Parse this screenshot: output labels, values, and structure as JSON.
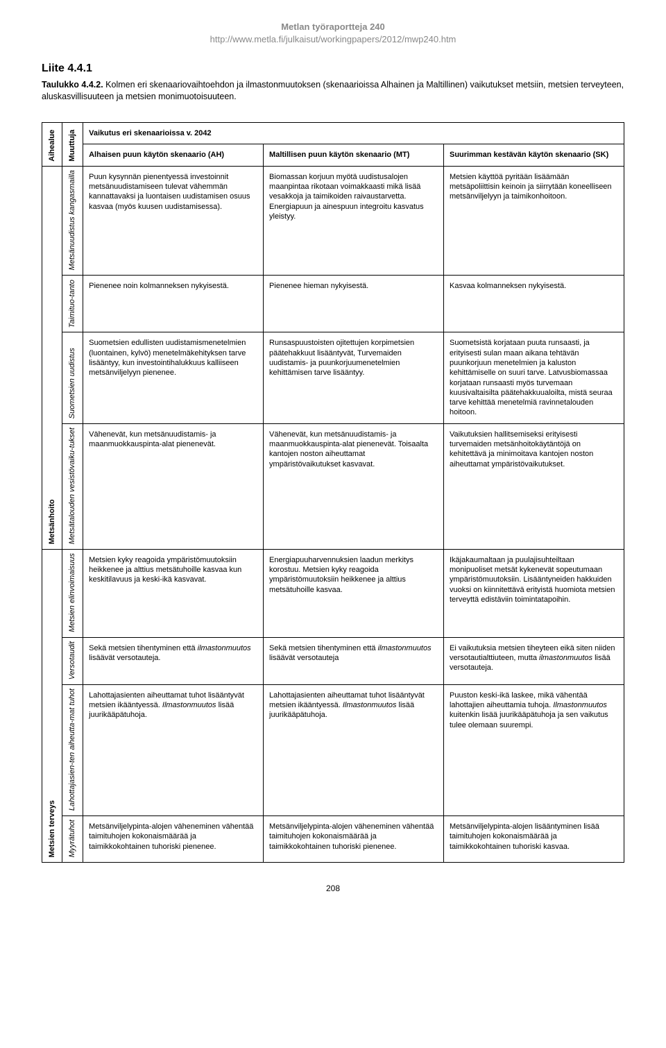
{
  "header": {
    "series": "Metlan työraportteja 240",
    "url": "http://www.metla.fi/julkaisut/workingpapers/2012/mwp240.htm"
  },
  "section": {
    "title": "Liite 4.4.1",
    "caption_label": "Taulukko 4.4.2.",
    "caption_text": " Kolmen eri skenaariovaihtoehdon ja ilmastonmuutoksen (skenaarioissa Alhainen ja Maltillinen) vaikutukset metsiin, metsien terveyteen, aluskasvillisuuteen ja metsien monimuotoisuuteen."
  },
  "table": {
    "head": {
      "aihealue": "Aihealue",
      "muuttuja": "Muuttuja",
      "scenario_title": "Vaikutus eri skenaarioissa v. 2042",
      "ah_pre": "Alhaisen puun",
      "ah_post": " käytön skenaario (AH)",
      "mt_pre": "Maltillisen puun",
      "mt_post": " käytön skenaario (MT)",
      "sk_pre": "Suurimman kestävän",
      "sk_post": " käytön skenaario (SK)"
    },
    "groups": [
      {
        "label": "Metsänhoito",
        "rows": [
          {
            "var": "Metsänuudistus kangasmailla",
            "ah": "Puun kysynnän pienentyessä investoinnit metsänuudistamiseen tulevat vähemmän kannattavaksi ja luontaisen uudistamisen osuus kasvaa (myös kuusen uudistamisessa).",
            "mt": "Biomassan korjuun myötä uudistusalojen maanpintaa rikotaan voimakkaasti mikä lisää vesakkoja ja taimikoiden raivaustarvetta. Energiapuun ja ainespuun integroitu kasvatus yleistyy.",
            "sk": "Metsien käyttöä pyritään lisäämään metsäpoliittisin keinoin ja siirrytään koneelliseen metsänviljelyyn ja taimikonhoitoon."
          },
          {
            "var": "Taimituo-tanto",
            "ah": "Pienenee noin kolmanneksen nykyisestä.",
            "mt": "Pienenee hieman nykyisestä.",
            "sk": "Kasvaa kolmanneksen nykyisestä."
          },
          {
            "var": "Suometsien uudistus",
            "ah": "Suometsien edullisten uudistamismenetelmien (luontainen, kylvö) menetelmäkehityksen tarve lisääntyy, kun investointihalukkuus kalliiseen metsänviljelyyn pienenee.",
            "mt": "Runsaspuustoisten ojitettujen korpimetsien päätehakkuut lisääntyvät, Turvemaiden uudistamis- ja puunkorjuumenetelmien kehittämisen tarve lisääntyy.",
            "sk": "Suometsistä korjataan puuta runsaasti, ja erityisesti sulan maan aikana tehtävän puunkorjuun menetelmien ja kaluston kehittämiselle on suuri tarve. Latvusbiomassaa korjataan runsaasti myös turvemaan kuusivaltaisilta päätehakkuualoilta, mistä seuraa tarve kehittää menetelmiä ravinnetalouden hoitoon."
          },
          {
            "var": "Metsätalouden vesistövaiku-tukset",
            "ah": "Vähenevät, kun metsänuudistamis- ja maanmuokkauspinta-alat pienenevät.",
            "mt": "Vähenevät, kun metsänuudistamis- ja maanmuokkauspinta-alat pienenevät. Toisaalta kantojen noston aiheuttamat ympäristövaikutukset kasvavat.",
            "sk": "Vaikutuksien hallitsemiseksi erityisesti turvemaiden metsänhoitokäytäntöjä on kehitettävä ja minimoitava kantojen noston aiheuttamat ympäristövaikutukset."
          }
        ]
      },
      {
        "label": "Metsien terveys",
        "rows": [
          {
            "var": "Metsien elinvoimaisuus",
            "ah": "Metsien kyky reagoida ympäristömuutoksiin heikkenee ja alttius metsätuhoille kasvaa kun keskitilavuus ja keski-ikä kasvavat.",
            "mt": "Energiapuuharvennuksien laadun merkitys korostuu.\nMetsien kyky reagoida ympäristömuutoksiin heikkenee ja alttius metsätuhoille kasvaa.",
            "sk": "Ikäjakaumaltaan ja puulajisuhteiltaan monipuoliset metsät kykenevät sopeutumaan ympäristömuutoksiin. Lisääntyneiden hakkuiden vuoksi on kiinnitettävä erityistä huomiota metsien terveyttä edistäviin toimintatapoihin."
          },
          {
            "var": "Versotaudit",
            "ah_html": "Sekä metsien tihentyminen että <em>ilmastonmuutos</em> lisäävät versotauteja.",
            "mt_html": "Sekä metsien tihentyminen että <em>ilmastonmuutos</em> lisäävät versotauteja",
            "sk_html": "Ei vaikutuksia metsien tiheyteen eikä siten niiden versotautialttiuteen, mutta <em>ilmastonmuutos</em> lisää versotauteja."
          },
          {
            "var": "Lahottajasien-ten aiheutta-mat tuhot",
            "ah_html": "Lahottajasienten aiheuttamat tuhot lisääntyvät metsien ikääntyessä. <em>Ilmastonmuutos</em> lisää juurikääpätuhoja.",
            "mt_html": "Lahottajasienten aiheuttamat tuhot lisääntyvät metsien ikääntyessä. <em>Ilmastonmuutos</em> lisää juurikääpätuhoja.",
            "sk_html": "Puuston keski-ikä laskee, mikä vähentää lahottajien aiheuttamia tuhoja. <em>Ilmastonmuutos</em> kuitenkin lisää juurikääpätuhoja ja sen vaikutus tulee olemaan suurempi."
          },
          {
            "var": "Myyrätuhot",
            "ah": "Metsänviljelypinta-alojen väheneminen vähentää taimituhojen kokonaismäärää ja taimikkokohtainen tuhoriski pienenee.",
            "mt": "Metsänviljelypinta-alojen väheneminen vähentää taimituhojen kokonaismäärää ja taimikkokohtainen tuhoriski pienenee.",
            "sk": "Metsänviljelypinta-alojen lisääntyminen lisää taimituhojen kokonaismäärää ja taimikkokohtainen tuhoriski kasvaa."
          }
        ]
      }
    ]
  },
  "page_number": "208"
}
